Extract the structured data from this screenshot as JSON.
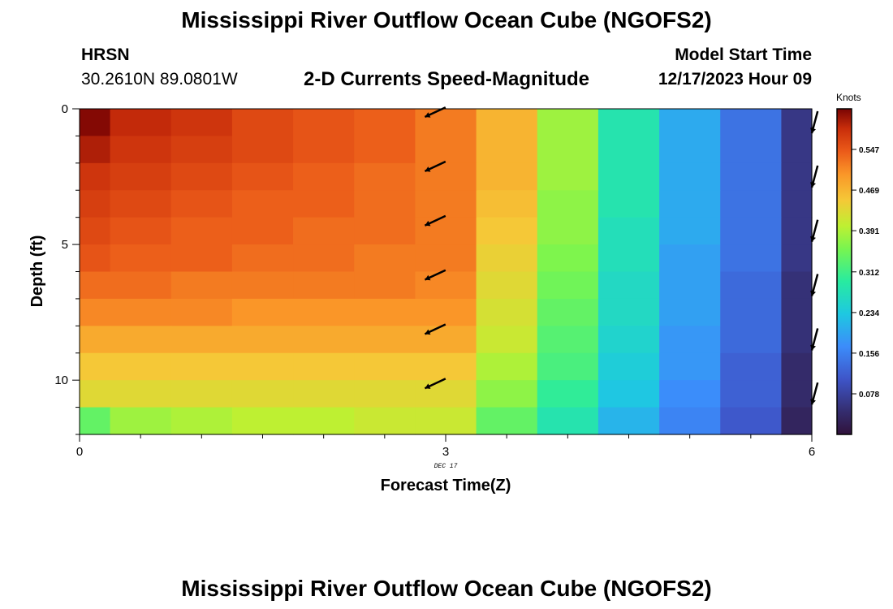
{
  "header": {
    "title": "Mississippi River Outflow Ocean Cube (NGOFS2)",
    "station_name": "HRSN",
    "station_coords": "30.2610N  89.0801W",
    "plot_subtitle": "2-D Currents Speed-Magnitude",
    "model_start_label": "Model Start Time",
    "model_start_value": "12/17/2023 Hour 09"
  },
  "footer": {
    "title": "Mississippi River Outflow Ocean Cube (NGOFS2)"
  },
  "chart_data": {
    "type": "heatmap",
    "xlabel": "Forecast Time(Z)",
    "ylabel": "Depth (ft)",
    "x_ticks": [
      0,
      3,
      6
    ],
    "x_date_label": "DEC 17",
    "y_ticks": [
      0,
      5,
      10
    ],
    "xlim": [
      0,
      6
    ],
    "ylim": [
      0,
      12
    ],
    "y_inverted": true,
    "colorbar": {
      "unit": "Knots",
      "ticks": [
        "0.078",
        "0.156",
        "0.234",
        "0.312",
        "0.391",
        "0.469",
        "0.547"
      ],
      "min": 0.0,
      "max": 0.625
    },
    "time_bins": [
      0,
      0.25,
      0.75,
      1.25,
      1.75,
      2.25,
      2.75,
      3.25,
      3.75,
      4.25,
      4.75,
      5.25,
      5.75,
      6
    ],
    "depth_rows": 12,
    "speed_knots": [
      [
        0.62,
        0.59,
        0.58,
        0.56,
        0.55,
        0.54,
        0.52,
        0.47,
        0.38,
        0.28,
        0.2,
        0.14,
        0.06
      ],
      [
        0.6,
        0.58,
        0.57,
        0.56,
        0.55,
        0.54,
        0.52,
        0.47,
        0.38,
        0.28,
        0.2,
        0.14,
        0.06
      ],
      [
        0.58,
        0.57,
        0.56,
        0.55,
        0.54,
        0.53,
        0.52,
        0.47,
        0.38,
        0.28,
        0.2,
        0.14,
        0.06
      ],
      [
        0.57,
        0.56,
        0.55,
        0.54,
        0.54,
        0.53,
        0.52,
        0.46,
        0.37,
        0.28,
        0.2,
        0.14,
        0.06
      ],
      [
        0.56,
        0.55,
        0.54,
        0.54,
        0.53,
        0.53,
        0.52,
        0.45,
        0.37,
        0.27,
        0.2,
        0.14,
        0.06
      ],
      [
        0.55,
        0.54,
        0.54,
        0.53,
        0.53,
        0.52,
        0.52,
        0.44,
        0.36,
        0.27,
        0.19,
        0.14,
        0.06
      ],
      [
        0.53,
        0.53,
        0.52,
        0.52,
        0.52,
        0.52,
        0.51,
        0.43,
        0.35,
        0.26,
        0.19,
        0.13,
        0.05
      ],
      [
        0.51,
        0.51,
        0.51,
        0.5,
        0.5,
        0.5,
        0.5,
        0.42,
        0.34,
        0.26,
        0.19,
        0.13,
        0.05
      ],
      [
        0.48,
        0.48,
        0.48,
        0.48,
        0.48,
        0.48,
        0.48,
        0.41,
        0.33,
        0.25,
        0.18,
        0.13,
        0.05
      ],
      [
        0.45,
        0.45,
        0.45,
        0.45,
        0.45,
        0.45,
        0.45,
        0.39,
        0.32,
        0.24,
        0.18,
        0.12,
        0.04
      ],
      [
        0.43,
        0.43,
        0.43,
        0.43,
        0.43,
        0.43,
        0.43,
        0.37,
        0.3,
        0.23,
        0.17,
        0.12,
        0.04
      ],
      [
        0.34,
        0.38,
        0.39,
        0.4,
        0.4,
        0.41,
        0.41,
        0.34,
        0.28,
        0.21,
        0.16,
        0.11,
        0.03
      ]
    ],
    "vector_columns": [
      {
        "time": 2.83,
        "depths": [
          0.3,
          2.3,
          4.3,
          6.3,
          8.3,
          10.3
        ],
        "direction_deg": 245
      },
      {
        "time": 6.0,
        "depths": [
          0.9,
          2.9,
          4.9,
          6.9,
          8.9,
          10.9
        ],
        "direction_deg": 195
      }
    ]
  }
}
